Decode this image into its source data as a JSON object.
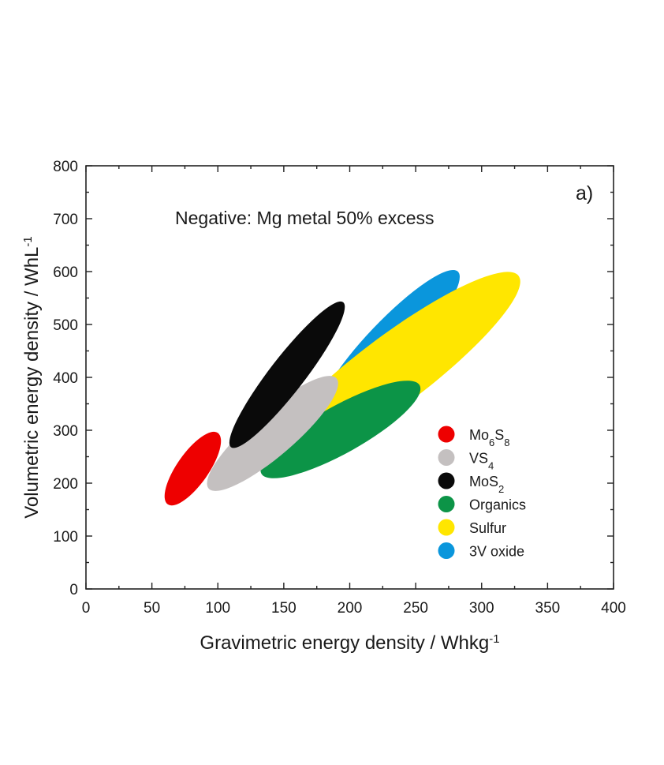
{
  "chart_data": {
    "type": "scatter",
    "panel_label": "a)",
    "annotation": "Negative: Mg metal 50% excess",
    "xlabel": {
      "main": "Gravimetric energy density / Whkg",
      "sup": "-1"
    },
    "ylabel": {
      "main": "Volumetric energy density / WhL",
      "sup": "-1"
    },
    "xlim": [
      0,
      400
    ],
    "ylim": [
      0,
      800
    ],
    "xticks": [
      0,
      50,
      100,
      150,
      200,
      250,
      300,
      350,
      400
    ],
    "yticks": [
      0,
      100,
      200,
      300,
      400,
      500,
      600,
      700,
      800
    ],
    "legend_position": "lower-right",
    "series": [
      {
        "name": "Mo6S8",
        "label_parts": [
          [
            "Mo",
            ""
          ],
          [
            "6",
            "sub"
          ],
          [
            "S",
            ""
          ],
          [
            "8",
            "sub"
          ]
        ],
        "color": "#ee0000",
        "x_range": [
          62,
          100
        ],
        "y_range": [
          160,
          295
        ]
      },
      {
        "name": "VS4",
        "label_parts": [
          [
            "VS",
            ""
          ],
          [
            "4",
            "sub"
          ]
        ],
        "color": "#c4c0c0",
        "x_range": [
          93,
          190
        ],
        "y_range": [
          190,
          398
        ]
      },
      {
        "name": "MoS2",
        "label_parts": [
          [
            "MoS",
            ""
          ],
          [
            "2",
            "sub"
          ]
        ],
        "color": "#0a0a0a",
        "x_range": [
          110,
          195
        ],
        "y_range": [
          268,
          542
        ]
      },
      {
        "name": "Organics",
        "label_parts": [
          [
            "Organics",
            ""
          ]
        ],
        "color": "#0c9447",
        "x_range": [
          133,
          253
        ],
        "y_range": [
          218,
          385
        ]
      },
      {
        "name": "Sulfur",
        "label_parts": [
          [
            "Sulfur",
            ""
          ]
        ],
        "color": "#ffe600",
        "x_range": [
          135,
          328
        ],
        "y_range": [
          228,
          592
        ]
      },
      {
        "name": "3V oxide",
        "label_parts": [
          [
            "3V oxide",
            ""
          ]
        ],
        "color": "#0a96dc",
        "x_range": [
          178,
          282
        ],
        "y_range": [
          328,
          600
        ]
      }
    ]
  }
}
